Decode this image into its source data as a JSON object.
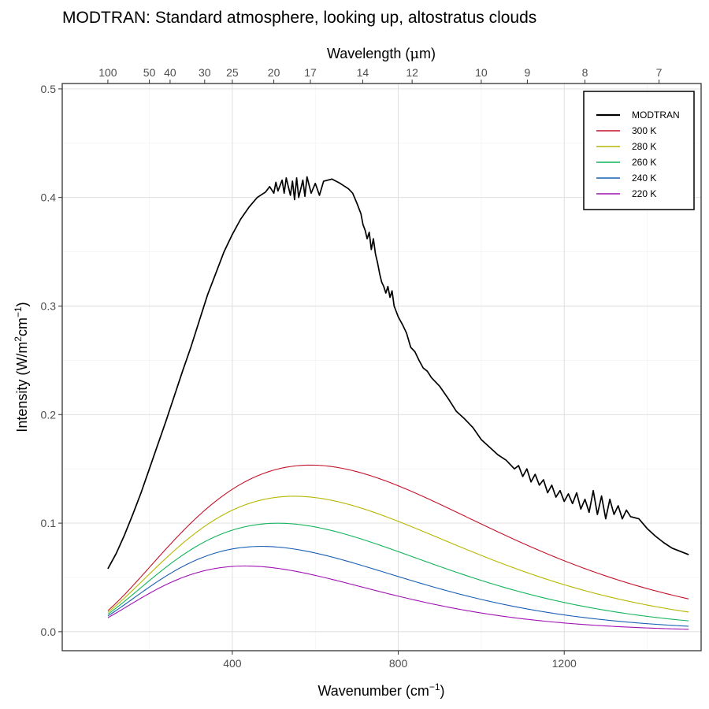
{
  "chart_data": {
    "type": "line",
    "title": "MODTRAN: Standard atmosphere, looking up, altostratus clouds",
    "xlabel": "Wavenumber (cm",
    "xlabel_sup": "−1",
    "xlabel_tail": ")",
    "ylabel": "Intensity (W/m",
    "ylabel_sup1": "2",
    "ylabel_mid": "cm",
    "ylabel_sup2": "−1",
    "ylabel_tail": ")",
    "x2label": "Wavelength (",
    "x2label_mu": "μ",
    "x2label_tail": "m)",
    "xlim": [
      -10,
      1530
    ],
    "ylim": [
      -0.0175,
      0.505
    ],
    "x_ticks": [
      400,
      800,
      1200
    ],
    "x_minor": [
      200,
      600,
      1000,
      1400
    ],
    "y_ticks": [
      0.0,
      0.1,
      0.2,
      0.3,
      0.4,
      0.5
    ],
    "y_tick_labels": [
      "0.0",
      "0.1",
      "0.2",
      "0.3",
      "0.4",
      "0.5"
    ],
    "x2_ticks": [
      100,
      50,
      40,
      30,
      25,
      20,
      17,
      14,
      12,
      10,
      9,
      8,
      7
    ],
    "grid": true,
    "legend_position": "top-right",
    "modtran": {
      "name": "MODTRAN",
      "color": "#000000",
      "points": [
        [
          100,
          0.058
        ],
        [
          120,
          0.072
        ],
        [
          140,
          0.089
        ],
        [
          160,
          0.108
        ],
        [
          180,
          0.128
        ],
        [
          200,
          0.15
        ],
        [
          220,
          0.172
        ],
        [
          240,
          0.194
        ],
        [
          260,
          0.217
        ],
        [
          280,
          0.24
        ],
        [
          300,
          0.262
        ],
        [
          320,
          0.286
        ],
        [
          340,
          0.31
        ],
        [
          360,
          0.33
        ],
        [
          380,
          0.35
        ],
        [
          400,
          0.366
        ],
        [
          420,
          0.38
        ],
        [
          440,
          0.391
        ],
        [
          460,
          0.4
        ],
        [
          480,
          0.405
        ],
        [
          490,
          0.41
        ],
        [
          500,
          0.404
        ],
        [
          505,
          0.414
        ],
        [
          510,
          0.406
        ],
        [
          520,
          0.416
        ],
        [
          525,
          0.404
        ],
        [
          530,
          0.418
        ],
        [
          540,
          0.402
        ],
        [
          545,
          0.415
        ],
        [
          550,
          0.398
        ],
        [
          555,
          0.418
        ],
        [
          560,
          0.4
        ],
        [
          570,
          0.416
        ],
        [
          575,
          0.401
        ],
        [
          580,
          0.419
        ],
        [
          590,
          0.404
        ],
        [
          600,
          0.413
        ],
        [
          610,
          0.402
        ],
        [
          620,
          0.415
        ],
        [
          640,
          0.417
        ],
        [
          660,
          0.413
        ],
        [
          680,
          0.408
        ],
        [
          690,
          0.404
        ],
        [
          700,
          0.395
        ],
        [
          710,
          0.385
        ],
        [
          715,
          0.375
        ],
        [
          720,
          0.37
        ],
        [
          725,
          0.362
        ],
        [
          730,
          0.368
        ],
        [
          735,
          0.352
        ],
        [
          740,
          0.362
        ],
        [
          745,
          0.348
        ],
        [
          750,
          0.34
        ],
        [
          755,
          0.33
        ],
        [
          760,
          0.322
        ],
        [
          765,
          0.318
        ],
        [
          770,
          0.312
        ],
        [
          775,
          0.318
        ],
        [
          780,
          0.308
        ],
        [
          785,
          0.314
        ],
        [
          790,
          0.3
        ],
        [
          795,
          0.295
        ],
        [
          800,
          0.29
        ],
        [
          810,
          0.283
        ],
        [
          820,
          0.275
        ],
        [
          830,
          0.262
        ],
        [
          840,
          0.258
        ],
        [
          850,
          0.25
        ],
        [
          860,
          0.243
        ],
        [
          870,
          0.24
        ],
        [
          880,
          0.234
        ],
        [
          890,
          0.23
        ],
        [
          900,
          0.226
        ],
        [
          920,
          0.215
        ],
        [
          940,
          0.203
        ],
        [
          960,
          0.196
        ],
        [
          980,
          0.188
        ],
        [
          1000,
          0.177
        ],
        [
          1020,
          0.17
        ],
        [
          1040,
          0.163
        ],
        [
          1060,
          0.158
        ],
        [
          1080,
          0.15
        ],
        [
          1090,
          0.153
        ],
        [
          1100,
          0.143
        ],
        [
          1110,
          0.15
        ],
        [
          1120,
          0.138
        ],
        [
          1130,
          0.145
        ],
        [
          1140,
          0.135
        ],
        [
          1150,
          0.14
        ],
        [
          1160,
          0.128
        ],
        [
          1170,
          0.135
        ],
        [
          1180,
          0.124
        ],
        [
          1190,
          0.13
        ],
        [
          1200,
          0.12
        ],
        [
          1210,
          0.127
        ],
        [
          1220,
          0.118
        ],
        [
          1230,
          0.128
        ],
        [
          1240,
          0.113
        ],
        [
          1250,
          0.122
        ],
        [
          1260,
          0.11
        ],
        [
          1270,
          0.13
        ],
        [
          1280,
          0.108
        ],
        [
          1290,
          0.125
        ],
        [
          1300,
          0.104
        ],
        [
          1310,
          0.122
        ],
        [
          1320,
          0.108
        ],
        [
          1330,
          0.116
        ],
        [
          1340,
          0.104
        ],
        [
          1350,
          0.112
        ],
        [
          1360,
          0.106
        ],
        [
          1380,
          0.104
        ],
        [
          1400,
          0.095
        ],
        [
          1420,
          0.088
        ],
        [
          1440,
          0.082
        ],
        [
          1460,
          0.077
        ],
        [
          1480,
          0.074
        ],
        [
          1500,
          0.071
        ]
      ]
    },
    "series": [
      {
        "name": "300 K",
        "temperature": 300,
        "color": "#c4122a"
      },
      {
        "name": "280 K",
        "temperature": 280,
        "color": "#b7b600"
      },
      {
        "name": "260 K",
        "temperature": 260,
        "color": "#14b45a"
      },
      {
        "name": "240 K",
        "temperature": 240,
        "color": "#1a5fb4"
      },
      {
        "name": "220 K",
        "temperature": 220,
        "color": "#a012b4"
      }
    ]
  }
}
